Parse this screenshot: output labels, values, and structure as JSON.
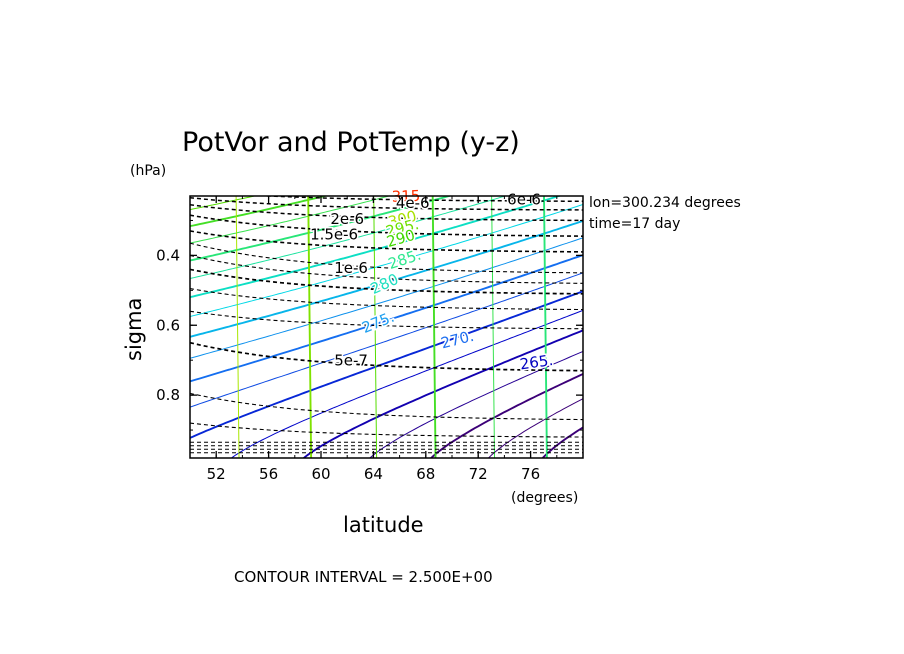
{
  "chart_data": {
    "type": "contour",
    "title": "PotVor and PotTemp (y-z)",
    "xlabel": "latitude",
    "ylabel": "sigma",
    "x_unit": "(degrees)",
    "y_unit": "(hPa)",
    "xlim": [
      50,
      80
    ],
    "ylim": [
      0.23,
      0.98
    ],
    "x_ticks": [
      "52",
      "56",
      "60",
      "64",
      "68",
      "72",
      "76"
    ],
    "x_tick_values": [
      52,
      56,
      60,
      64,
      68,
      72,
      76
    ],
    "y_ticks": [
      "0.4",
      "0.6",
      "0.8"
    ],
    "y_tick_values": [
      0.4,
      0.6,
      0.8
    ],
    "info": [
      "lon=300.234 degrees",
      "time=17 day"
    ],
    "footer": "CONTOUR INTERVAL = 2.500E+00",
    "pottemp": {
      "interval": 2.5,
      "labels": [
        {
          "text": "315",
          "value": 315,
          "lat": 66.5,
          "sigma": 0.245,
          "color": "#ff3000",
          "angle": -2
        },
        {
          "text": "300",
          "value": 300,
          "lat": 66.3,
          "sigma": 0.31,
          "color": "#a8e000",
          "angle": -14
        },
        {
          "text": "295.",
          "value": 295,
          "lat": 66.3,
          "sigma": 0.335,
          "color": "#70e000",
          "angle": -14
        },
        {
          "text": "290",
          "value": 290,
          "lat": 66.2,
          "sigma": 0.365,
          "color": "#40d800",
          "angle": -16
        },
        {
          "text": "285.",
          "value": 285,
          "lat": 66.5,
          "sigma": 0.425,
          "color": "#30e890",
          "angle": -18
        },
        {
          "text": "280",
          "value": 280,
          "lat": 65.0,
          "sigma": 0.495,
          "color": "#20e0c0",
          "angle": -24
        },
        {
          "text": "275.",
          "value": 275,
          "lat": 64.5,
          "sigma": 0.605,
          "color": "#20a0f0",
          "angle": -22
        },
        {
          "text": "270.",
          "value": 270,
          "lat": 70.5,
          "sigma": 0.655,
          "color": "#2070f0",
          "angle": -14
        },
        {
          "text": "265.",
          "value": 265,
          "lat": 76.5,
          "sigma": 0.72,
          "color": "#0000c0",
          "angle": -8
        }
      ]
    },
    "potvor": {
      "labels": [
        {
          "text": "6e-6",
          "value": 6e-06,
          "lat": 75.5,
          "sigma": 0.255
        },
        {
          "text": "4e-6",
          "value": 4e-06,
          "lat": 67.0,
          "sigma": 0.265
        },
        {
          "text": "2e-6",
          "value": 2e-06,
          "lat": 62.0,
          "sigma": 0.31
        },
        {
          "text": "1.5e-6",
          "value": 1.5e-06,
          "lat": 61.0,
          "sigma": 0.355
        },
        {
          "text": "1e-6",
          "value": 1e-06,
          "lat": 62.3,
          "sigma": 0.45
        },
        {
          "text": "5e-7",
          "value": 5e-07,
          "lat": 62.3,
          "sigma": 0.715
        }
      ]
    }
  }
}
